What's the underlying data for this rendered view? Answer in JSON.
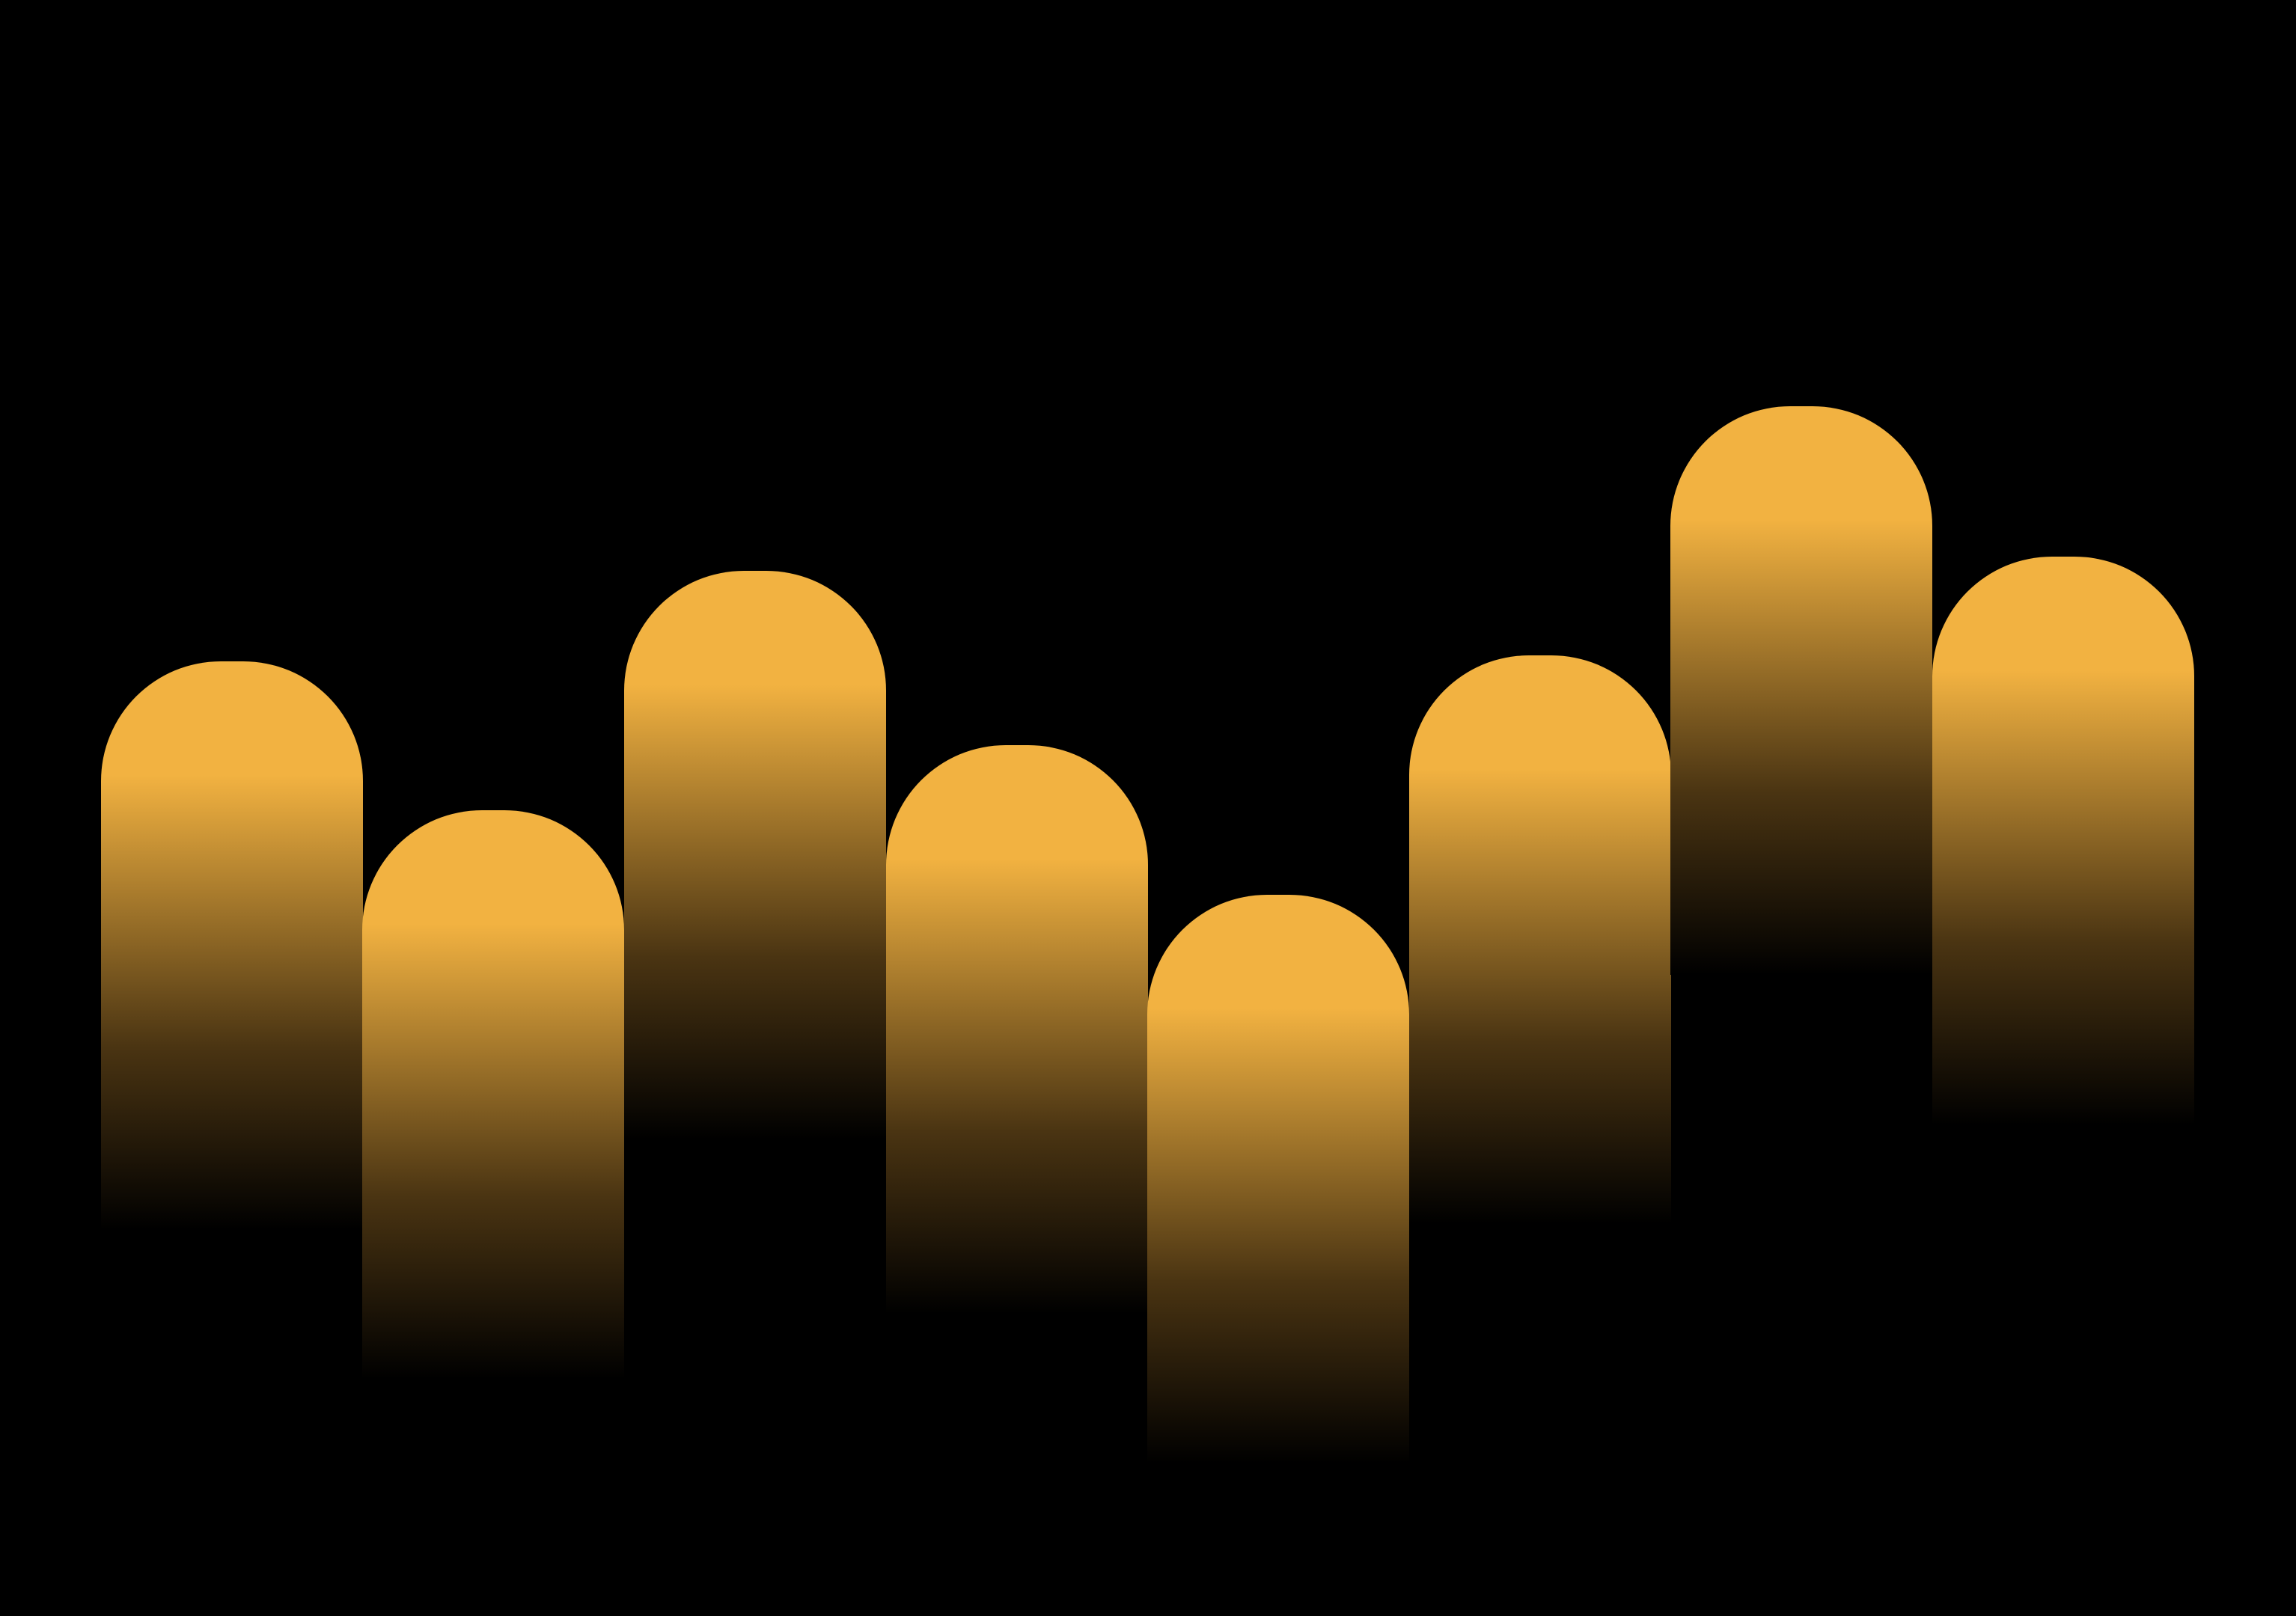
{
  "colors": {
    "background": "#000000",
    "bar_top": "#F2B241",
    "bar_bottom": "#000000"
  },
  "shapes": {
    "count": 8
  }
}
